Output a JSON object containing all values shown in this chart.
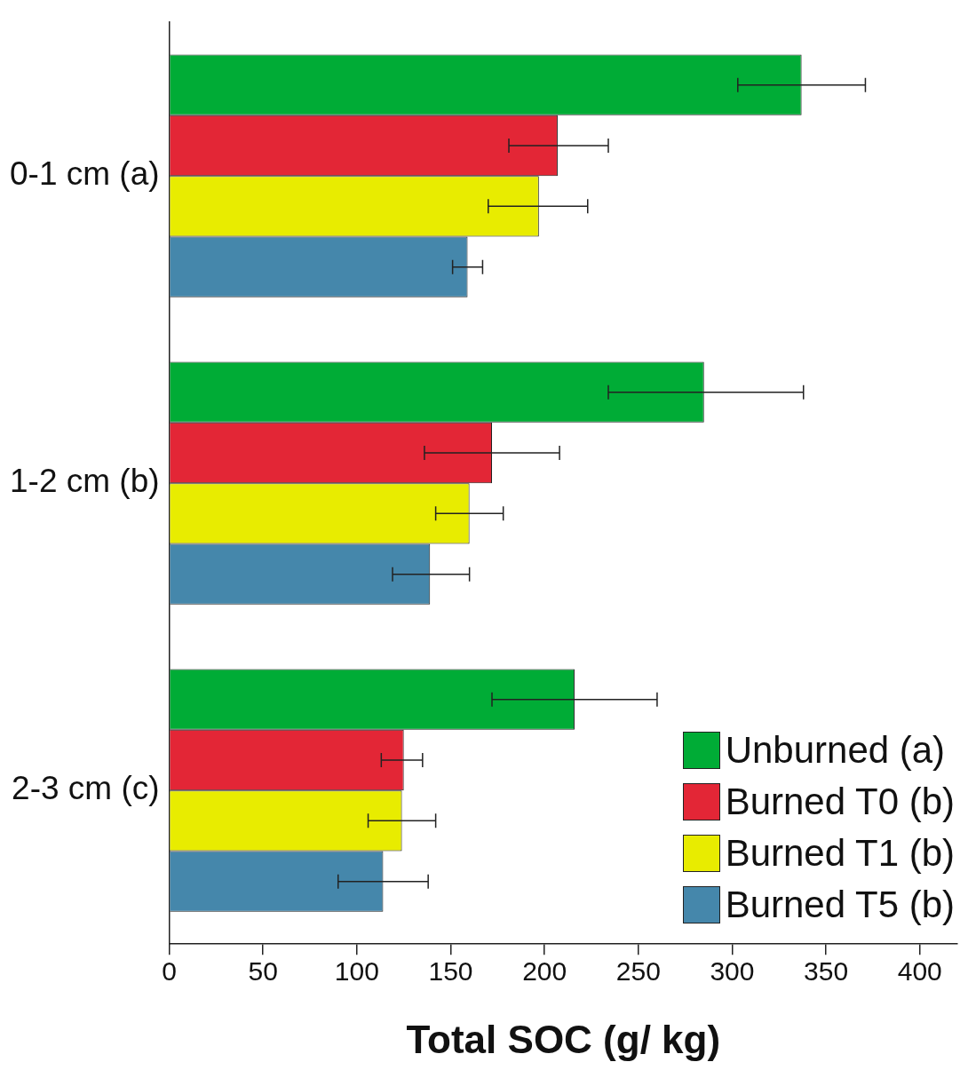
{
  "chart_data": {
    "type": "bar",
    "orientation": "horizontal",
    "xlabel": "Total SOC (g/ kg)",
    "categories": [
      "0-1 cm (a)",
      "1-2 cm (b)",
      "2-3 cm (c)"
    ],
    "series": [
      {
        "name": "Unburned (a)",
        "color": "#00ac36",
        "values": [
          337,
          285,
          216
        ],
        "errors": [
          [
            303,
            371
          ],
          [
            234,
            338
          ],
          [
            172,
            260
          ]
        ]
      },
      {
        "name": "Burned T0 (b)",
        "color": "#e32636",
        "values": [
          207,
          172,
          125
        ],
        "errors": [
          [
            181,
            234
          ],
          [
            136,
            208
          ],
          [
            113,
            135
          ]
        ]
      },
      {
        "name": "Burned T1 (b)",
        "color": "#e8ec00",
        "values": [
          197,
          160,
          124
        ],
        "errors": [
          [
            170,
            223
          ],
          [
            142,
            178
          ],
          [
            106,
            142
          ]
        ]
      },
      {
        "name": "Burned T5 (b)",
        "color": "#4587ab",
        "values": [
          159,
          139,
          114
        ],
        "errors": [
          [
            151,
            167
          ],
          [
            119,
            160
          ],
          [
            90,
            138
          ]
        ]
      }
    ],
    "xlim": [
      0,
      420
    ],
    "xticks": [
      0,
      50,
      100,
      150,
      200,
      250,
      300,
      350,
      400
    ],
    "grid": false,
    "legend": "bottom right"
  }
}
